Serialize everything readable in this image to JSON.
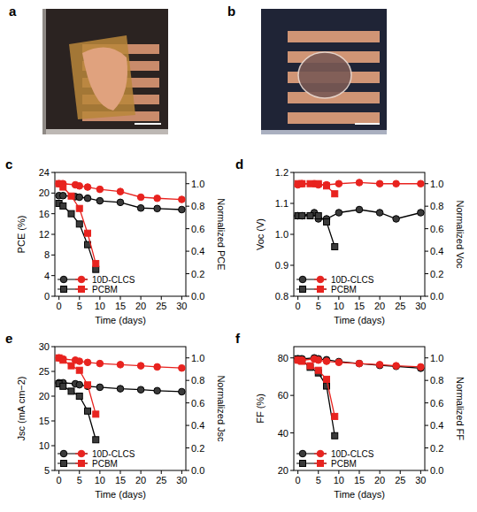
{
  "photos": [
    {
      "panel": "a"
    },
    {
      "panel": "b"
    }
  ],
  "chart_data": [
    {
      "panel": "c",
      "type": "line",
      "x_label": "Time (days)",
      "y_label": "PCE (%)",
      "y2_label": "Normalized PCE",
      "xlim": [
        -1,
        31
      ],
      "xticks": [
        0,
        5,
        10,
        15,
        20,
        25,
        30
      ],
      "ylim": [
        0,
        24
      ],
      "yticks": [
        0,
        4,
        8,
        12,
        16,
        20,
        24
      ],
      "y2lim": [
        0,
        1.1
      ],
      "y2ticks": [
        {
          "value": 0,
          "label": "0.0"
        },
        0.2,
        0.4,
        0.6,
        0.8,
        {
          "value": 1,
          "label": "1.0"
        }
      ],
      "legend": "lower left",
      "series": [
        {
          "name": "10D-CLCS",
          "color": "#000000",
          "marker": "circle",
          "x": [
            0,
            1,
            4,
            5,
            7,
            10,
            15,
            20,
            24,
            30
          ],
          "values": [
            19.5,
            19.5,
            19.3,
            19.2,
            19.0,
            18.5,
            18.2,
            17.1,
            17.0,
            16.8
          ]
        },
        {
          "name": "PCBM",
          "color": "#000000",
          "marker": "square",
          "x": [
            0,
            1,
            3,
            5,
            7,
            9
          ],
          "values": [
            18.0,
            17.5,
            16.0,
            14.0,
            10.0,
            5.2
          ]
        },
        {
          "color": "#e8231f",
          "marker": "circle",
          "axis": "y2",
          "x": [
            0,
            1,
            4,
            5,
            7,
            10,
            15,
            20,
            24,
            30
          ],
          "values": [
            1.0,
            1.0,
            0.99,
            0.98,
            0.97,
            0.95,
            0.93,
            0.88,
            0.87,
            0.86
          ]
        },
        {
          "color": "#e8231f",
          "marker": "square",
          "axis": "y2",
          "x": [
            0,
            1,
            3,
            5,
            7,
            9
          ],
          "values": [
            1.0,
            0.97,
            0.89,
            0.78,
            0.56,
            0.29
          ]
        }
      ]
    },
    {
      "panel": "d",
      "type": "line",
      "x_label": "Time (days)",
      "y_label": "Voc (V)",
      "y2_label": "Normalized Voc",
      "xlim": [
        -1,
        31
      ],
      "xticks": [
        0,
        5,
        10,
        15,
        20,
        25,
        30
      ],
      "ylim": [
        0.8,
        1.2
      ],
      "yticks": [
        0.8,
        0.9,
        {
          "value": 1,
          "label": "1.0"
        },
        1.1,
        1.2
      ],
      "y2lim": [
        0,
        1.1
      ],
      "y2ticks": [
        {
          "value": 0,
          "label": "0.0"
        },
        0.2,
        0.4,
        0.6,
        0.8,
        {
          "value": 1,
          "label": "1.0"
        }
      ],
      "legend": "lower left",
      "series": [
        {
          "name": "10D-CLCS",
          "color": "#000000",
          "marker": "circle",
          "x": [
            0,
            1,
            4,
            5,
            7,
            10,
            15,
            20,
            24,
            30
          ],
          "values": [
            1.06,
            1.06,
            1.07,
            1.05,
            1.05,
            1.07,
            1.08,
            1.07,
            1.05,
            1.07
          ]
        },
        {
          "name": "PCBM",
          "color": "#000000",
          "marker": "square",
          "x": [
            0,
            1,
            3,
            5,
            7,
            9
          ],
          "values": [
            1.06,
            1.06,
            1.06,
            1.06,
            1.04,
            0.96
          ]
        },
        {
          "color": "#e8231f",
          "marker": "circle",
          "axis": "y2",
          "x": [
            0,
            1,
            4,
            5,
            7,
            10,
            15,
            20,
            24,
            30
          ],
          "values": [
            0.99,
            1.0,
            1.0,
            0.99,
            0.99,
            1.0,
            1.01,
            1.0,
            1.0,
            1.0
          ]
        },
        {
          "color": "#e8231f",
          "marker": "square",
          "axis": "y2",
          "x": [
            0,
            1,
            3,
            5,
            7,
            9
          ],
          "values": [
            1.0,
            1.0,
            1.0,
            1.0,
            0.98,
            0.91
          ]
        }
      ]
    },
    {
      "panel": "e",
      "type": "line",
      "x_label": "Time (days)",
      "y_label": "Jsc (mA cm−2)",
      "y2_label": "Normalized Jsc",
      "xlim": [
        -1,
        31
      ],
      "xticks": [
        0,
        5,
        10,
        15,
        20,
        25,
        30
      ],
      "ylim": [
        5,
        30
      ],
      "yticks": [
        5,
        10,
        15,
        20,
        25,
        30
      ],
      "y2lim": [
        0,
        1.1
      ],
      "y2ticks": [
        {
          "value": 0,
          "label": "0.0"
        },
        0.2,
        0.4,
        0.6,
        0.8,
        {
          "value": 1,
          "label": "1.0"
        }
      ],
      "legend": "lower left",
      "series": [
        {
          "name": "10D-CLCS",
          "color": "#000000",
          "marker": "circle",
          "x": [
            0,
            1,
            4,
            5,
            7,
            10,
            15,
            20,
            24,
            30
          ],
          "values": [
            22.7,
            22.7,
            22.5,
            22.3,
            22.0,
            21.8,
            21.5,
            21.3,
            21.1,
            20.9
          ]
        },
        {
          "name": "PCBM",
          "color": "#000000",
          "marker": "square",
          "x": [
            0,
            1,
            3,
            5,
            7,
            9
          ],
          "values": [
            22.5,
            22.0,
            21.0,
            20.0,
            17.0,
            11.2
          ]
        },
        {
          "color": "#e8231f",
          "marker": "circle",
          "axis": "y2",
          "x": [
            0,
            1,
            4,
            5,
            7,
            10,
            15,
            20,
            24,
            30
          ],
          "values": [
            1.0,
            0.99,
            0.98,
            0.97,
            0.96,
            0.95,
            0.94,
            0.93,
            0.92,
            0.91
          ]
        },
        {
          "color": "#e8231f",
          "marker": "square",
          "axis": "y2",
          "x": [
            0,
            1,
            3,
            5,
            7,
            9
          ],
          "values": [
            1.0,
            0.98,
            0.93,
            0.89,
            0.76,
            0.5
          ]
        }
      ]
    },
    {
      "panel": "f",
      "type": "line",
      "x_label": "Time (days)",
      "y_label": "FF (%)",
      "y2_label": "Normalized FF",
      "xlim": [
        -1,
        31
      ],
      "xticks": [
        0,
        5,
        10,
        15,
        20,
        25,
        30
      ],
      "ylim": [
        20,
        86
      ],
      "yticks": [
        20,
        40,
        60,
        80
      ],
      "y2lim": [
        0,
        1.1
      ],
      "y2ticks": [
        {
          "value": 0,
          "label": "0.0"
        },
        0.2,
        0.4,
        0.6,
        0.8,
        {
          "value": 1,
          "label": "1.0"
        }
      ],
      "legend": "lower left",
      "series": [
        {
          "name": "10D-CLCS",
          "color": "#000000",
          "marker": "circle",
          "x": [
            0,
            1,
            4,
            5,
            7,
            10,
            15,
            20,
            24,
            30
          ],
          "values": [
            79.5,
            79.5,
            80.0,
            79.5,
            79.0,
            78.0,
            77.0,
            76.0,
            75.5,
            74.5
          ]
        },
        {
          "name": "PCBM",
          "color": "#000000",
          "marker": "square",
          "x": [
            0,
            1,
            3,
            5,
            7,
            9
          ],
          "values": [
            79.5,
            78.5,
            75.0,
            72.0,
            65.0,
            38.5
          ]
        },
        {
          "color": "#e8231f",
          "marker": "circle",
          "axis": "y2",
          "x": [
            0,
            1,
            4,
            5,
            7,
            10,
            15,
            20,
            24,
            30
          ],
          "values": [
            0.98,
            0.98,
            0.99,
            0.98,
            0.97,
            0.96,
            0.95,
            0.94,
            0.93,
            0.92
          ]
        },
        {
          "color": "#e8231f",
          "marker": "square",
          "axis": "y2",
          "x": [
            0,
            1,
            3,
            5,
            7,
            9
          ],
          "values": [
            0.98,
            0.97,
            0.93,
            0.89,
            0.81,
            0.48
          ]
        }
      ]
    }
  ]
}
